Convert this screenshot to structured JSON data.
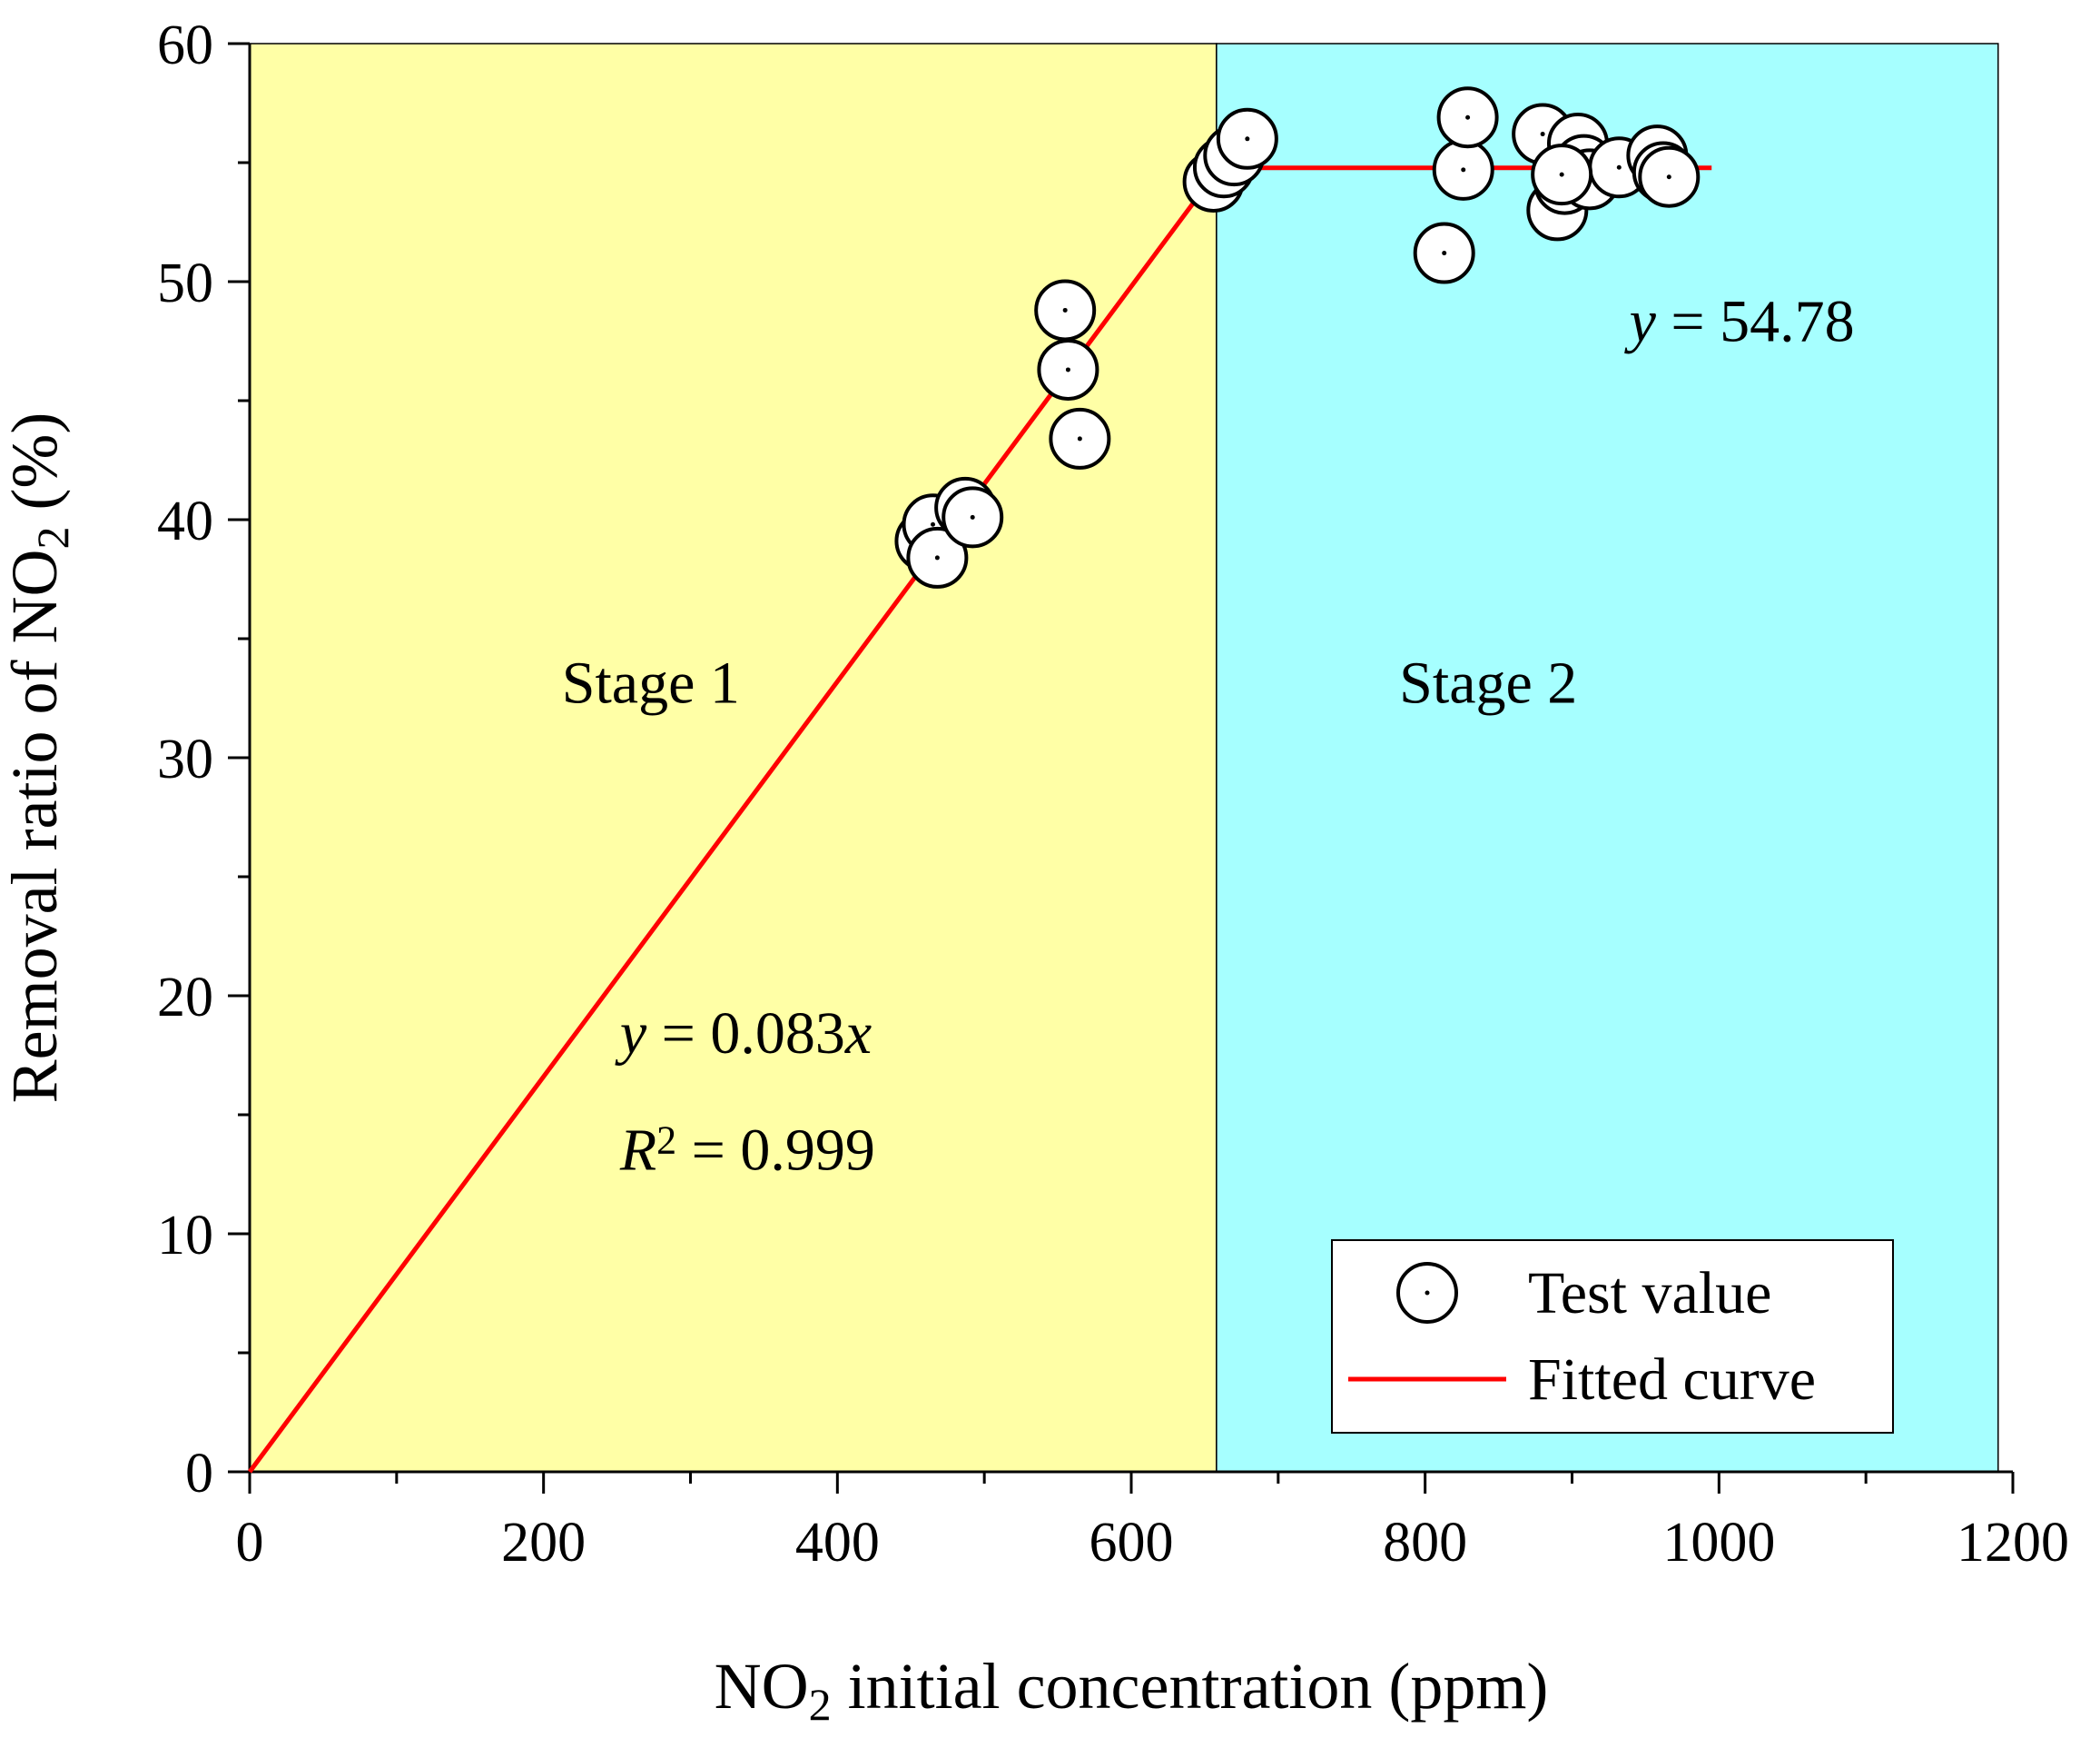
{
  "chart_data": {
    "type": "scatter",
    "xlabel": {
      "main": "NO",
      "sub": "2",
      "rest": " initial concentration (ppm)"
    },
    "ylabel": {
      "main": "Removal ratio of NO",
      "sub": "2",
      "rest": " (%)"
    },
    "xlim": [
      0,
      1200
    ],
    "ylim": [
      0,
      60
    ],
    "xticks": [
      0,
      200,
      400,
      600,
      800,
      1000,
      1200
    ],
    "yticks": [
      0,
      10,
      20,
      30,
      40,
      50,
      60
    ],
    "xticks_minor": [
      100,
      300,
      500,
      700,
      900,
      1100
    ],
    "yticks_minor": [
      5,
      15,
      25,
      35,
      45,
      55
    ],
    "regions": [
      {
        "name": "Stage 1",
        "x": [
          0,
          658
        ],
        "color": "#ffffa6",
        "label_at": [
          273,
          32.3
        ]
      },
      {
        "name": "Stage 2",
        "x": [
          658,
          1190
        ],
        "color": "#a6ffff",
        "label_at": [
          843,
          32.3
        ]
      }
    ],
    "series": [
      {
        "name": "Test value",
        "kind": "scatter",
        "marker": "open-circle-dot",
        "points": [
          [
            460,
            39.1
          ],
          [
            465,
            39.8
          ],
          [
            468,
            38.4
          ],
          [
            487,
            40.5
          ],
          [
            492,
            40.1
          ],
          [
            555,
            48.8
          ],
          [
            557,
            46.3
          ],
          [
            565,
            43.4
          ],
          [
            656,
            54.2
          ],
          [
            663,
            54.8
          ],
          [
            670,
            55.3
          ],
          [
            679,
            56.0
          ],
          [
            813,
            51.2
          ],
          [
            826,
            54.7
          ],
          [
            829,
            56.9
          ],
          [
            880,
            56.2
          ],
          [
            890,
            53.0
          ],
          [
            895,
            54.1
          ],
          [
            904,
            55.8
          ],
          [
            908,
            54.9
          ],
          [
            912,
            54.3
          ],
          [
            932,
            54.8
          ],
          [
            958,
            55.3
          ],
          [
            962,
            54.6
          ],
          [
            966,
            54.4
          ],
          [
            893,
            54.5
          ]
        ]
      },
      {
        "name": "Fitted curve",
        "kind": "line",
        "color": "#ff0000",
        "points": [
          [
            0,
            0
          ],
          [
            660,
            54.78
          ],
          [
            995,
            54.78
          ]
        ]
      }
    ],
    "annotations": [
      {
        "parts": [
          {
            "t": "y",
            "italic": true
          },
          {
            "t": " = 54.78"
          }
        ],
        "at": [
          939,
          47.5
        ]
      },
      {
        "parts": [
          {
            "t": "y",
            "italic": true
          },
          {
            "t": " = 0.083"
          },
          {
            "t": "x",
            "italic": true
          }
        ],
        "at": [
          252,
          17.6
        ]
      },
      {
        "parts": [
          {
            "t": "R",
            "italic": true
          },
          {
            "t": "2",
            "sup": true
          },
          {
            "t": " = 0.999"
          }
        ],
        "at": [
          252,
          12.7
        ]
      }
    ],
    "legend": {
      "position": "bottom-right",
      "entries": [
        {
          "label": "Test value",
          "symbol": "open-circle-dot"
        },
        {
          "label": "Fitted curve",
          "symbol": "red-line"
        }
      ]
    }
  }
}
